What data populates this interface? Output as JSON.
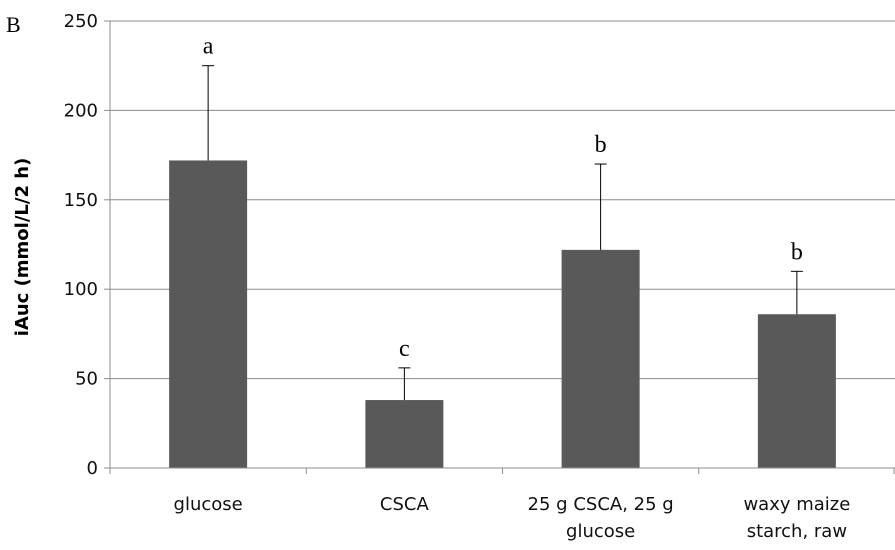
{
  "panel_label": "B",
  "chart_data": {
    "type": "bar",
    "categories": [
      [
        "glucose"
      ],
      [
        "CSCA"
      ],
      [
        "25 g CSCA, 25 g",
        "glucose"
      ],
      [
        "waxy maize",
        "starch, raw"
      ]
    ],
    "values": [
      172,
      38,
      122,
      86
    ],
    "error_plus": [
      53,
      18,
      48,
      24
    ],
    "significance_letters": [
      "a",
      "c",
      "b",
      "b"
    ],
    "ylabel": "iAuc (mmol/L/2 h)",
    "ylim": [
      0,
      250
    ],
    "yticks": [
      0,
      50,
      100,
      150,
      200,
      250
    ],
    "grid": true,
    "bar_color": "#595959",
    "grid_color": "#8c8c8c",
    "axis_color": "#8c8c8c"
  }
}
